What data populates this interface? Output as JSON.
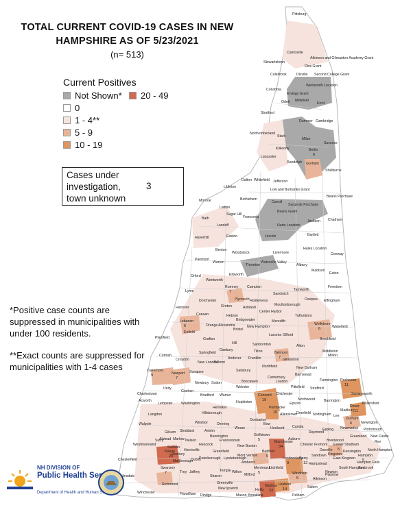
{
  "header": {
    "title_line1": "TOTAL CURRENT COVID-19 CASES IN NEW",
    "title_line2": "HAMPSHIRE AS OF 5/23/2021",
    "subtitle": "(n= 513)"
  },
  "legend": {
    "title": "Current Positives",
    "items": [
      {
        "label": "Not Shown*",
        "color": "#a9a9a9"
      },
      {
        "label": "20 - 49",
        "color": "#d06b4f"
      },
      {
        "label": "0",
        "color": "#ffffff"
      },
      {
        "label": "1 - 4**",
        "color": "#f6e3de"
      },
      {
        "label": "5 - 9",
        "color": "#e9b59a"
      },
      {
        "label": "10 - 19",
        "color": "#de955f"
      }
    ]
  },
  "unknown_box": {
    "label": "Cases under investigation, town unknown",
    "value": "3"
  },
  "notes": {
    "note1": "*Positive case counts are suppressed in municipalities with under 100 residents.",
    "note2": "**Exact counts are suppressed for municipalities with 1-4 cases"
  },
  "logo": {
    "line1": "NH DIVISION OF",
    "line2": "Public Health Services",
    "line3": "Department of Health and Human Services"
  },
  "map": {
    "towns": [
      {
        "name": "Pittsburg",
        "fill": "#f6e3de"
      },
      {
        "name": "Clarksville"
      },
      {
        "name": "Atkinson and Gilmanton Academy Grant"
      },
      {
        "name": "Stewartstown"
      },
      {
        "name": "Dixs Grant"
      },
      {
        "name": "Colebrook"
      },
      {
        "name": "Dixville"
      },
      {
        "name": "Second College Grant"
      },
      {
        "name": "Wentworth Location"
      },
      {
        "name": "Columbia"
      },
      {
        "name": "Ervings Grant"
      },
      {
        "name": "Odell"
      },
      {
        "name": "Millsfield"
      },
      {
        "name": "Errol"
      },
      {
        "name": "Stratford"
      },
      {
        "name": "Dummer"
      },
      {
        "name": "Cambridge"
      },
      {
        "name": "Northumberland"
      },
      {
        "name": "Stark"
      },
      {
        "name": "Milan"
      },
      {
        "name": "Success"
      },
      {
        "name": "Kilkenny"
      },
      {
        "name": "Berlin",
        "count": "6"
      },
      {
        "name": "Lancaster"
      },
      {
        "name": "Randolph"
      },
      {
        "name": "Gorham"
      },
      {
        "name": "Shelburne"
      },
      {
        "name": "Dalton"
      },
      {
        "name": "Whitefield"
      },
      {
        "name": "Jefferson"
      },
      {
        "name": "Littleton"
      },
      {
        "name": "Low and Burbanks Grant"
      },
      {
        "name": "Beans Purchase"
      },
      {
        "name": "Monroe"
      },
      {
        "name": "Bethlehem"
      },
      {
        "name": "Carroll"
      },
      {
        "name": "Sargents Purchase"
      },
      {
        "name": "Lisbon"
      },
      {
        "name": "Beans Grant"
      },
      {
        "name": "Sugar Hill"
      },
      {
        "name": "Franconia"
      },
      {
        "name": "Jackson"
      },
      {
        "name": "Chatham"
      },
      {
        "name": "Bath"
      },
      {
        "name": "Landaff"
      },
      {
        "name": "Harts Location"
      },
      {
        "name": "Easton"
      },
      {
        "name": "Lincoln"
      },
      {
        "name": "Bartlett"
      },
      {
        "name": "Haverhill"
      },
      {
        "name": "Benton"
      },
      {
        "name": "Woodstock"
      },
      {
        "name": "Livermore"
      },
      {
        "name": "Hales Location"
      },
      {
        "name": "Conway"
      },
      {
        "name": "Piermont"
      },
      {
        "name": "Warren"
      },
      {
        "name": "Thornton"
      },
      {
        "name": "Waterville Valley"
      },
      {
        "name": "Albany"
      },
      {
        "name": "Madison"
      },
      {
        "name": "Eaton"
      },
      {
        "name": "Orford"
      },
      {
        "name": "Wentworth"
      },
      {
        "name": "Ellsworth"
      },
      {
        "name": "Campton"
      },
      {
        "name": "Tamworth"
      },
      {
        "name": "Freedom"
      },
      {
        "name": "Lyme"
      },
      {
        "name": "Rumney",
        "count": "7"
      },
      {
        "name": "Dorchester"
      },
      {
        "name": "Plymouth"
      },
      {
        "name": "Holderness"
      },
      {
        "name": "Sandwich"
      },
      {
        "name": "Ossipee"
      },
      {
        "name": "Effingham"
      },
      {
        "name": "Hanover"
      },
      {
        "name": "Groton"
      },
      {
        "name": "Ashland"
      },
      {
        "name": "Center Harbor"
      },
      {
        "name": "Moultonborough"
      },
      {
        "name": "Canaan"
      },
      {
        "name": "Hebron"
      },
      {
        "name": "Bridgewater"
      },
      {
        "name": "Meredith"
      },
      {
        "name": "Tuftonboro"
      },
      {
        "name": "Lebanon",
        "count": "6"
      },
      {
        "name": "Enfield"
      },
      {
        "name": "Orange"
      },
      {
        "name": "Alexandria"
      },
      {
        "name": "Bristol"
      },
      {
        "name": "New Hampton"
      },
      {
        "name": "Wolfeboro",
        "count": "6"
      },
      {
        "name": "Wakefield"
      },
      {
        "name": "Plainfield"
      },
      {
        "name": "Grafton"
      },
      {
        "name": "Laconia"
      },
      {
        "name": "Gilford"
      },
      {
        "name": "Brookfield"
      },
      {
        "name": "Hill"
      },
      {
        "name": "Sanbornton"
      },
      {
        "name": "Alton"
      },
      {
        "name": "Middleton"
      },
      {
        "name": "Cornish"
      },
      {
        "name": "Springfield"
      },
      {
        "name": "Danbury"
      },
      {
        "name": "Tilton"
      },
      {
        "name": "Belmont",
        "count": "7"
      },
      {
        "name": "Milton"
      },
      {
        "name": "Croydon"
      },
      {
        "name": "New London"
      },
      {
        "name": "Wilmot"
      },
      {
        "name": "Andover"
      },
      {
        "name": "Franklin"
      },
      {
        "name": "Gilmanton"
      },
      {
        "name": "New Durham"
      },
      {
        "name": "Claremont",
        "count": "9"
      },
      {
        "name": "Newport",
        "count": "7"
      },
      {
        "name": "Sunapee"
      },
      {
        "name": "Salisbury"
      },
      {
        "name": "Northfield"
      },
      {
        "name": "Barnstead"
      },
      {
        "name": "Farmington"
      },
      {
        "name": "Rochester",
        "count": "11"
      },
      {
        "name": "Unity"
      },
      {
        "name": "Goshen"
      },
      {
        "name": "Newbury"
      },
      {
        "name": "Sutton"
      },
      {
        "name": "Boscawen"
      },
      {
        "name": "Canterbury"
      },
      {
        "name": "Loudon"
      },
      {
        "name": "Pittsfield"
      },
      {
        "name": "Strafford"
      },
      {
        "name": "Somersworth"
      },
      {
        "name": "Charlestown"
      },
      {
        "name": "Bradford"
      },
      {
        "name": "Warner"
      },
      {
        "name": "Webster"
      },
      {
        "name": "Chichester"
      },
      {
        "name": "Concord",
        "count": "19"
      },
      {
        "name": "Northwood"
      },
      {
        "name": "Barrington"
      },
      {
        "name": "Dover",
        "count": "11"
      },
      {
        "name": "Rollinsford"
      },
      {
        "name": "Acworth"
      },
      {
        "name": "Lempster"
      },
      {
        "name": "Washington"
      },
      {
        "name": "Henniker"
      },
      {
        "name": "Hopkinton"
      },
      {
        "name": "Epsom"
      },
      {
        "name": "Madbury"
      },
      {
        "name": "Langdon"
      },
      {
        "name": "Hillsborough"
      },
      {
        "name": "Pembroke",
        "count": "10"
      },
      {
        "name": "Allenstown"
      },
      {
        "name": "Deerfield"
      },
      {
        "name": "Nottingham"
      },
      {
        "name": "Lee"
      },
      {
        "name": "Durham",
        "count": "6"
      },
      {
        "name": "Newington"
      },
      {
        "name": "Walpole"
      },
      {
        "name": "Stoddard"
      },
      {
        "name": "Windsor"
      },
      {
        "name": "Deering"
      },
      {
        "name": "Weare"
      },
      {
        "name": "Bow"
      },
      {
        "name": "Dunbarton"
      },
      {
        "name": "Hooksett"
      },
      {
        "name": "Candia"
      },
      {
        "name": "Raymond"
      },
      {
        "name": "Epping"
      },
      {
        "name": "Newmarket"
      },
      {
        "name": "Portsmouth"
      },
      {
        "name": "Gilsum"
      },
      {
        "name": "Antrim"
      },
      {
        "name": "Bennington"
      },
      {
        "name": "Goffstown",
        "count": "5"
      },
      {
        "name": "Greenland"
      },
      {
        "name": "New Castle"
      },
      {
        "name": "Rye"
      },
      {
        "name": "Surry"
      },
      {
        "name": "Alstead"
      },
      {
        "name": "Marlow"
      },
      {
        "name": "Nelson"
      },
      {
        "name": "Hancock"
      },
      {
        "name": "Francestown"
      },
      {
        "name": "New Boston"
      },
      {
        "name": "Manchester",
        "count": "34"
      },
      {
        "name": "Auburn"
      },
      {
        "name": "Chester"
      },
      {
        "name": "Fremont"
      },
      {
        "name": "Brentwood"
      },
      {
        "name": "Exeter",
        "count": "5"
      },
      {
        "name": "Stratham"
      },
      {
        "name": "Westmoreland"
      },
      {
        "name": "Sullivan"
      },
      {
        "name": "Harrisville"
      },
      {
        "name": "Greenfield"
      },
      {
        "name": "Bedford",
        "count": "5"
      },
      {
        "name": "Kensington"
      },
      {
        "name": "North Hampton"
      },
      {
        "name": "Keene",
        "count": "20"
      },
      {
        "name": "Roxbury"
      },
      {
        "name": "Dublin"
      },
      {
        "name": "Peterborough"
      },
      {
        "name": "Lyndeborough"
      },
      {
        "name": "Mont Vernon"
      },
      {
        "name": "Amherst"
      },
      {
        "name": "Londonderry",
        "count": "9"
      },
      {
        "name": "Derry",
        "count": "12"
      },
      {
        "name": "Sandown"
      },
      {
        "name": "Kingston"
      },
      {
        "name": "Hampton",
        "count": "5"
      },
      {
        "name": "Chesterfield"
      },
      {
        "name": "Marlborough"
      },
      {
        "name": "Merrimack",
        "count": "5"
      },
      {
        "name": "Litchfield"
      },
      {
        "name": "Hampstead"
      },
      {
        "name": "East Kingston"
      },
      {
        "name": "Hampton Falls"
      },
      {
        "name": "Swanzey",
        "count": "7"
      },
      {
        "name": "Troy"
      },
      {
        "name": "Jaffrey"
      },
      {
        "name": "Sharon"
      },
      {
        "name": "Temple"
      },
      {
        "name": "Wilton"
      },
      {
        "name": "Milford"
      },
      {
        "name": "Windham",
        "count": "5"
      },
      {
        "name": "Newton"
      },
      {
        "name": "South Hampton"
      },
      {
        "name": "Seabrook"
      },
      {
        "name": "Hinsdale"
      },
      {
        "name": "Richmond"
      },
      {
        "name": "Greenville"
      },
      {
        "name": "Hollis"
      },
      {
        "name": "Nashua",
        "count": "33"
      },
      {
        "name": "Hudson",
        "count": "14"
      },
      {
        "name": "Pelham"
      },
      {
        "name": "Salem"
      },
      {
        "name": "Atkinson"
      },
      {
        "name": "Plaistow"
      },
      {
        "name": "Winchester"
      },
      {
        "name": "Fitzwilliam"
      },
      {
        "name": "Rindge"
      },
      {
        "name": "New Ipswich"
      },
      {
        "name": "Mason"
      },
      {
        "name": "Brookline"
      },
      {
        "name": "Danville"
      }
    ]
  }
}
